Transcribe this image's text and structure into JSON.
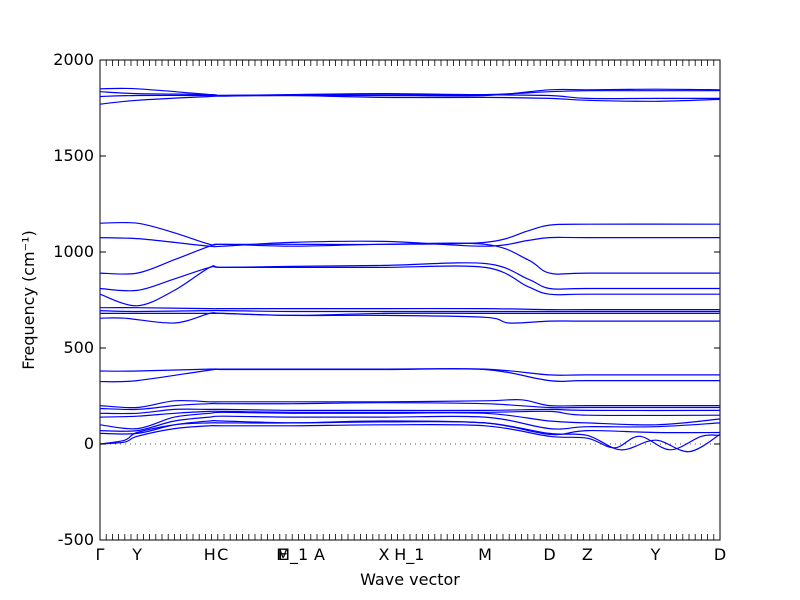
{
  "chart_data": {
    "type": "line",
    "title": "",
    "xlabel": "Wave vector",
    "ylabel": "Frequency (cm⁻¹)",
    "ylim": [
      -500,
      2000
    ],
    "yticks": [
      -500,
      0,
      500,
      1000,
      1500,
      2000
    ],
    "xlim": [
      0,
      1
    ],
    "xticks": [
      {
        "pos": 0.0,
        "label": "Γ"
      },
      {
        "pos": 0.06,
        "label": "Y"
      },
      {
        "pos": 0.177,
        "label": "H"
      },
      {
        "pos": 0.198,
        "label": "C"
      },
      {
        "pos": 0.295,
        "label": "E"
      },
      {
        "pos": 0.31,
        "label": "M_1"
      },
      {
        "pos": 0.354,
        "label": "A"
      },
      {
        "pos": 0.458,
        "label": "X"
      },
      {
        "pos": 0.499,
        "label": "H_1"
      },
      {
        "pos": 0.621,
        "label": "M"
      },
      {
        "pos": 0.725,
        "label": "D"
      },
      {
        "pos": 0.786,
        "label": "Z"
      },
      {
        "pos": 0.896,
        "label": "Y"
      },
      {
        "pos": 1.0,
        "label": "D"
      }
    ],
    "zero_line": 0,
    "series": [
      {
        "x": [
          0,
          0.06,
          0.177,
          0.198,
          0.31,
          0.458,
          0.621,
          0.725,
          0.786,
          0.896,
          1
        ],
        "y": [
          1850,
          1850,
          1820,
          1815,
          1815,
          1815,
          1815,
          1845,
          1845,
          1848,
          1845
        ]
      },
      {
        "x": [
          0,
          0.06,
          0.177,
          0.198,
          0.31,
          0.458,
          0.621,
          0.725,
          0.786,
          0.896,
          1
        ],
        "y": [
          1835,
          1825,
          1820,
          1815,
          1820,
          1825,
          1820,
          1835,
          1840,
          1840,
          1840
        ]
      },
      {
        "x": [
          0,
          0.06,
          0.177,
          0.198,
          0.31,
          0.458,
          0.621,
          0.725,
          0.786,
          0.896,
          1
        ],
        "y": [
          1810,
          1815,
          1815,
          1815,
          1818,
          1818,
          1818,
          1815,
          1800,
          1800,
          1800
        ]
      },
      {
        "x": [
          0,
          0.06,
          0.177,
          0.198,
          0.31,
          0.458,
          0.621,
          0.725,
          0.786,
          0.896,
          1
        ],
        "y": [
          1770,
          1790,
          1810,
          1812,
          1815,
          1805,
          1805,
          1800,
          1790,
          1785,
          1795
        ]
      },
      {
        "x": [
          0,
          0.06,
          0.12,
          0.177,
          0.198,
          0.31,
          0.458,
          0.621,
          0.69,
          0.725,
          0.786,
          1
        ],
        "y": [
          1150,
          1150,
          1100,
          1040,
          1040,
          1040,
          1040,
          1050,
          1110,
          1140,
          1145,
          1145
        ]
      },
      {
        "x": [
          0,
          0.06,
          0.12,
          0.177,
          0.198,
          0.31,
          0.458,
          0.621,
          0.69,
          0.725,
          0.786,
          1
        ],
        "y": [
          1075,
          1070,
          1050,
          1030,
          1030,
          1050,
          1055,
          1030,
          1060,
          1075,
          1075,
          1075
        ]
      },
      {
        "x": [
          0,
          0.06,
          0.12,
          0.177,
          0.198,
          0.31,
          0.458,
          0.621,
          0.69,
          0.725,
          0.786,
          1
        ],
        "y": [
          890,
          890,
          960,
          1030,
          1040,
          1030,
          1040,
          1040,
          960,
          890,
          890,
          890
        ]
      },
      {
        "x": [
          0,
          0.06,
          0.12,
          0.177,
          0.198,
          0.31,
          0.458,
          0.621,
          0.69,
          0.725,
          0.786,
          1
        ],
        "y": [
          810,
          800,
          860,
          920,
          920,
          925,
          930,
          940,
          860,
          810,
          810,
          810
        ]
      },
      {
        "x": [
          0,
          0.06,
          0.12,
          0.177,
          0.198,
          0.31,
          0.458,
          0.621,
          0.69,
          0.725,
          0.786,
          1
        ],
        "y": [
          780,
          720,
          800,
          920,
          920,
          920,
          920,
          920,
          820,
          780,
          780,
          780
        ]
      },
      {
        "x": [
          0,
          0.06,
          0.177,
          0.198,
          0.31,
          0.458,
          0.621,
          0.725,
          0.786,
          1
        ],
        "y": [
          710,
          710,
          705,
          705,
          705,
          705,
          705,
          700,
          700,
          700
        ]
      },
      {
        "x": [
          0,
          0.06,
          0.177,
          0.198,
          0.31,
          0.458,
          0.621,
          0.725,
          0.786,
          1
        ],
        "y": [
          695,
          690,
          695,
          695,
          690,
          690,
          690,
          690,
          690,
          690
        ]
      },
      {
        "x": [
          0,
          0.06,
          0.177,
          0.198,
          0.31,
          0.458,
          0.621,
          0.725,
          0.786,
          1
        ],
        "y": [
          680,
          680,
          680,
          680,
          670,
          680,
          680,
          680,
          680,
          680
        ]
      },
      {
        "x": [
          0,
          0.04,
          0.12,
          0.177,
          0.198,
          0.31,
          0.458,
          0.621,
          0.66,
          0.725,
          0.786,
          1
        ],
        "y": [
          655,
          655,
          630,
          680,
          680,
          670,
          670,
          660,
          630,
          640,
          640,
          640
        ]
      },
      {
        "x": [
          0,
          0.06,
          0.177,
          0.198,
          0.31,
          0.458,
          0.621,
          0.725,
          0.786,
          1
        ],
        "y": [
          380,
          380,
          390,
          390,
          390,
          390,
          390,
          360,
          360,
          360
        ]
      },
      {
        "x": [
          0,
          0.06,
          0.177,
          0.198,
          0.31,
          0.458,
          0.621,
          0.725,
          0.786,
          1
        ],
        "y": [
          325,
          330,
          385,
          388,
          388,
          388,
          388,
          330,
          330,
          330
        ]
      },
      {
        "x": [
          0,
          0.06,
          0.12,
          0.177,
          0.198,
          0.31,
          0.458,
          0.621,
          0.68,
          0.725,
          0.786,
          1
        ],
        "y": [
          200,
          190,
          225,
          220,
          220,
          220,
          220,
          225,
          230,
          200,
          200,
          200
        ]
      },
      {
        "x": [
          0,
          0.06,
          0.12,
          0.177,
          0.198,
          0.31,
          0.458,
          0.621,
          0.725,
          0.786,
          1
        ],
        "y": [
          185,
          180,
          200,
          210,
          210,
          210,
          215,
          210,
          190,
          190,
          190
        ]
      },
      {
        "x": [
          0,
          0.06,
          0.12,
          0.177,
          0.198,
          0.31,
          0.458,
          0.621,
          0.725,
          0.786,
          1
        ],
        "y": [
          160,
          160,
          180,
          180,
          180,
          175,
          175,
          175,
          180,
          175,
          175
        ]
      },
      {
        "x": [
          0,
          0.06,
          0.12,
          0.177,
          0.198,
          0.31,
          0.458,
          0.621,
          0.725,
          0.786,
          1
        ],
        "y": [
          140,
          145,
          160,
          170,
          170,
          165,
          165,
          165,
          170,
          150,
          150
        ]
      },
      {
        "x": [
          0,
          0.06,
          0.12,
          0.177,
          0.198,
          0.31,
          0.458,
          0.621,
          0.725,
          0.786,
          0.896,
          1
        ],
        "y": [
          100,
          80,
          140,
          160,
          165,
          160,
          160,
          160,
          120,
          110,
          100,
          130
        ]
      },
      {
        "x": [
          0,
          0.06,
          0.12,
          0.177,
          0.198,
          0.31,
          0.458,
          0.621,
          0.725,
          0.786,
          0.896,
          1
        ],
        "y": [
          70,
          70,
          120,
          140,
          145,
          140,
          140,
          140,
          80,
          90,
          90,
          110
        ]
      },
      {
        "x": [
          0,
          0.06,
          0.12,
          0.177,
          0.198,
          0.31,
          0.458,
          0.621,
          0.725,
          0.786,
          0.896,
          1
        ],
        "y": [
          55,
          55,
          100,
          120,
          120,
          110,
          115,
          110,
          50,
          70,
          60,
          60
        ]
      },
      {
        "x": [
          0,
          0.04,
          0.06,
          0.12,
          0.177,
          0.198,
          0.31,
          0.458,
          0.621,
          0.725,
          0.786,
          0.84,
          0.896,
          0.95,
          1
        ],
        "y": [
          0,
          20,
          60,
          100,
          110,
          110,
          110,
          120,
          110,
          55,
          45,
          -30,
          20,
          -40,
          50
        ]
      },
      {
        "x": [
          0,
          0.04,
          0.06,
          0.12,
          0.177,
          0.198,
          0.31,
          0.458,
          0.621,
          0.725,
          0.786,
          0.83,
          0.87,
          0.92,
          0.97,
          1
        ],
        "y": [
          0,
          10,
          40,
          80,
          95,
          95,
          95,
          100,
          95,
          40,
          30,
          -20,
          40,
          -30,
          40,
          45
        ]
      }
    ]
  }
}
